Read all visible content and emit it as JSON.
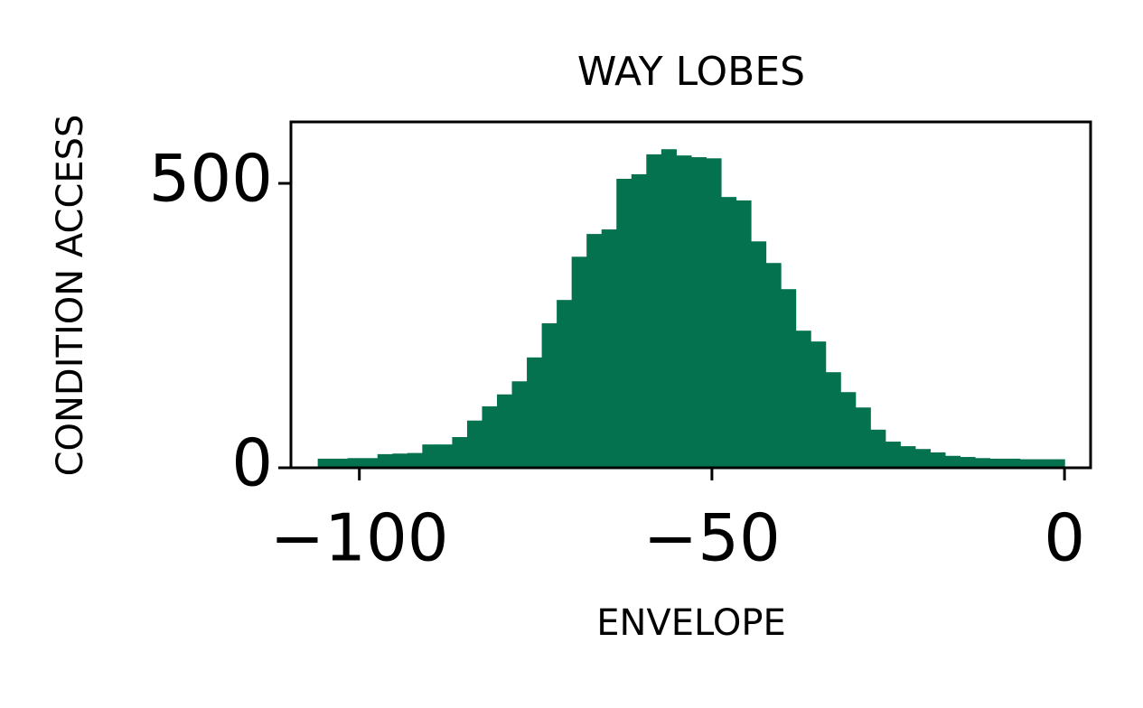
{
  "chart_data": {
    "type": "histogram",
    "title": "WAY LOBES",
    "x_label": "ENVELOPE",
    "y_label": "CONDITION ACCESS",
    "bins": [
      -105.9,
      -103.782,
      -101.664,
      -99.546,
      -97.428,
      -95.31,
      -93.192,
      -91.074,
      -88.956,
      -86.838,
      -84.72,
      -82.602,
      -80.484,
      -78.366,
      -76.248,
      -74.13,
      -72.012,
      -69.894,
      -67.776,
      -65.658,
      -63.54,
      -61.422,
      -59.304,
      -57.186,
      -55.068,
      -52.95,
      -50.832,
      -48.714,
      -46.596,
      -44.478,
      -42.36,
      -40.242,
      -38.124,
      -36.006,
      -33.888,
      -31.77,
      -29.652,
      -27.534,
      -25.416,
      -23.298,
      -21.18,
      -19.062,
      -16.944,
      -14.826,
      -12.708,
      -10.59,
      -8.472,
      -6.354,
      -4.236,
      -2.118,
      0
    ],
    "values": [
      16,
      16,
      17,
      17,
      24,
      25,
      26,
      41,
      41,
      54,
      83,
      108,
      129,
      152,
      194,
      254,
      295,
      371,
      411,
      419,
      508,
      516,
      551,
      560,
      549,
      546,
      544,
      476,
      470,
      398,
      360,
      314,
      241,
      222,
      168,
      133,
      106,
      67,
      46,
      38,
      33,
      27,
      21,
      19,
      17,
      16,
      16,
      15,
      15,
      15
    ],
    "color": "#04724f",
    "xlim": [
      -109.7,
      3.7
    ],
    "ylim": [
      0,
      608
    ],
    "xticks": [
      {
        "value": -100,
        "label": "−100"
      },
      {
        "value": -50,
        "label": "−50"
      },
      0
    ],
    "yticks": [
      0,
      500
    ],
    "grid": false
  }
}
